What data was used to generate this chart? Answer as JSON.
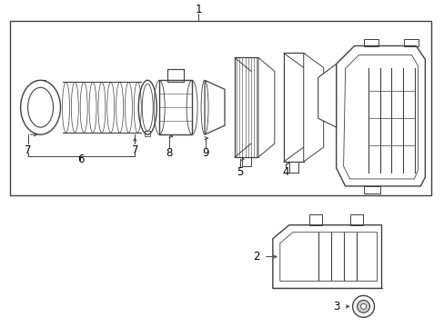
{
  "bg_color": "#ffffff",
  "line_color": "#404040",
  "label_color": "#000000",
  "label_fontsize": 8.5,
  "fig_width": 4.89,
  "fig_height": 3.6,
  "dpi": 100
}
